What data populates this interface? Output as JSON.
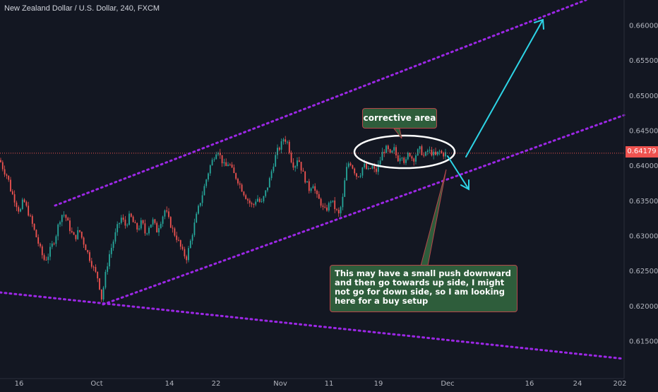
{
  "header": {
    "title": "New Zealand Dollar / U.S. Dollar, 240, FXCM"
  },
  "current_price": {
    "label": "0.64179",
    "value": 0.64179,
    "color": "#ef5350"
  },
  "annotations": {
    "corrective_label": "corrective area",
    "analysis_text": "This may have a small push downward and then go towards up side, I might not go for down side, so I am looking here for a buy setup"
  },
  "colors": {
    "background": "#131722",
    "up_candle": "#26a69a",
    "down_candle": "#ef5350",
    "channel_lines": "#9c27e6",
    "arrows": "#2dd4e6",
    "note_fill": "#2e5d3b",
    "note_border": "#b5474a",
    "text": "#d1d4dc"
  },
  "icons": [
    "arrow-up-icon",
    "arrow-down-icon"
  ],
  "chart_data": {
    "type": "candlestick",
    "title": "New Zealand Dollar / U.S. Dollar, 240, FXCM",
    "y_axis": {
      "side": "right",
      "range": [
        0.611,
        0.6635
      ],
      "ticks": [
        "0.61500",
        "0.62000",
        "0.62500",
        "0.63000",
        "0.63500",
        "0.64000",
        "0.64500",
        "0.65000",
        "0.65500",
        "0.66000"
      ]
    },
    "x_axis": {
      "labels": [
        "16",
        "Oct",
        "14",
        "22",
        "Nov",
        "11",
        "19",
        "Dec",
        "16",
        "24",
        "202"
      ]
    },
    "grid": false,
    "candles_path": [
      [
        0,
        0.6408
      ],
      [
        5,
        0.6394
      ],
      [
        11,
        0.6384
      ],
      [
        15,
        0.6366
      ],
      [
        22,
        0.6348
      ],
      [
        28,
        0.6333
      ],
      [
        33,
        0.6352
      ],
      [
        38,
        0.6339
      ],
      [
        44,
        0.6322
      ],
      [
        50,
        0.6303
      ],
      [
        56,
        0.6284
      ],
      [
        62,
        0.6266
      ],
      [
        67,
        0.6269
      ],
      [
        72,
        0.6283
      ],
      [
        78,
        0.6296
      ],
      [
        84,
        0.6322
      ],
      [
        89,
        0.6333
      ],
      [
        94,
        0.6325
      ],
      [
        100,
        0.6307
      ],
      [
        106,
        0.6296
      ],
      [
        112,
        0.6309
      ],
      [
        117,
        0.6294
      ],
      [
        123,
        0.6279
      ],
      [
        128,
        0.6265
      ],
      [
        134,
        0.625
      ],
      [
        139,
        0.6239
      ],
      [
        144,
        0.621
      ],
      [
        150,
        0.6249
      ],
      [
        155,
        0.6274
      ],
      [
        161,
        0.6294
      ],
      [
        166,
        0.6312
      ],
      [
        172,
        0.6326
      ],
      [
        178,
        0.6314
      ],
      [
        184,
        0.633
      ],
      [
        190,
        0.6316
      ],
      [
        195,
        0.6309
      ],
      [
        201,
        0.6321
      ],
      [
        206,
        0.6302
      ],
      [
        211,
        0.6314
      ],
      [
        217,
        0.6322
      ],
      [
        222,
        0.6307
      ],
      [
        228,
        0.6322
      ],
      [
        234,
        0.6338
      ],
      [
        240,
        0.632
      ],
      [
        246,
        0.6305
      ],
      [
        252,
        0.6294
      ],
      [
        258,
        0.6278
      ],
      [
        264,
        0.6268
      ],
      [
        270,
        0.6293
      ],
      [
        275,
        0.6315
      ],
      [
        280,
        0.6336
      ],
      [
        286,
        0.6357
      ],
      [
        292,
        0.638
      ],
      [
        297,
        0.6398
      ],
      [
        303,
        0.6413
      ],
      [
        308,
        0.6425
      ],
      [
        313,
        0.641
      ],
      [
        319,
        0.6397
      ],
      [
        324,
        0.6405
      ],
      [
        330,
        0.639
      ],
      [
        336,
        0.6381
      ],
      [
        342,
        0.6368
      ],
      [
        347,
        0.6358
      ],
      [
        353,
        0.6348
      ],
      [
        358,
        0.6342
      ],
      [
        364,
        0.6355
      ],
      [
        370,
        0.6345
      ],
      [
        376,
        0.6362
      ],
      [
        381,
        0.6377
      ],
      [
        386,
        0.6398
      ],
      [
        392,
        0.642
      ],
      [
        397,
        0.6427
      ],
      [
        402,
        0.644
      ],
      [
        408,
        0.6432
      ],
      [
        412,
        0.641
      ],
      [
        417,
        0.6398
      ],
      [
        422,
        0.6413
      ],
      [
        427,
        0.6395
      ],
      [
        432,
        0.6381
      ],
      [
        438,
        0.6366
      ],
      [
        443,
        0.6376
      ],
      [
        448,
        0.6357
      ],
      [
        454,
        0.6348
      ],
      [
        459,
        0.6335
      ],
      [
        464,
        0.634
      ],
      [
        469,
        0.6352
      ],
      [
        475,
        0.6338
      ],
      [
        480,
        0.633
      ],
      [
        485,
        0.635
      ],
      [
        490,
        0.6393
      ],
      [
        495,
        0.6407
      ],
      [
        500,
        0.6397
      ],
      [
        505,
        0.6386
      ],
      [
        510,
        0.6388
      ],
      [
        515,
        0.6402
      ],
      [
        521,
        0.6392
      ],
      [
        527,
        0.6399
      ],
      [
        532,
        0.639
      ],
      [
        537,
        0.6403
      ],
      [
        542,
        0.642
      ],
      [
        548,
        0.6425
      ],
      [
        553,
        0.6414
      ],
      [
        558,
        0.6424
      ],
      [
        563,
        0.6409
      ],
      [
        569,
        0.6417
      ],
      [
        574,
        0.6402
      ],
      [
        579,
        0.642
      ],
      [
        585,
        0.6408
      ],
      [
        590,
        0.6418
      ],
      [
        595,
        0.6424
      ],
      [
        601,
        0.6412
      ],
      [
        606,
        0.6422
      ],
      [
        612,
        0.6418
      ],
      [
        617,
        0.6414
      ],
      [
        622,
        0.6421
      ],
      [
        627,
        0.6416
      ],
      [
        632,
        0.6418
      ]
    ]
  }
}
